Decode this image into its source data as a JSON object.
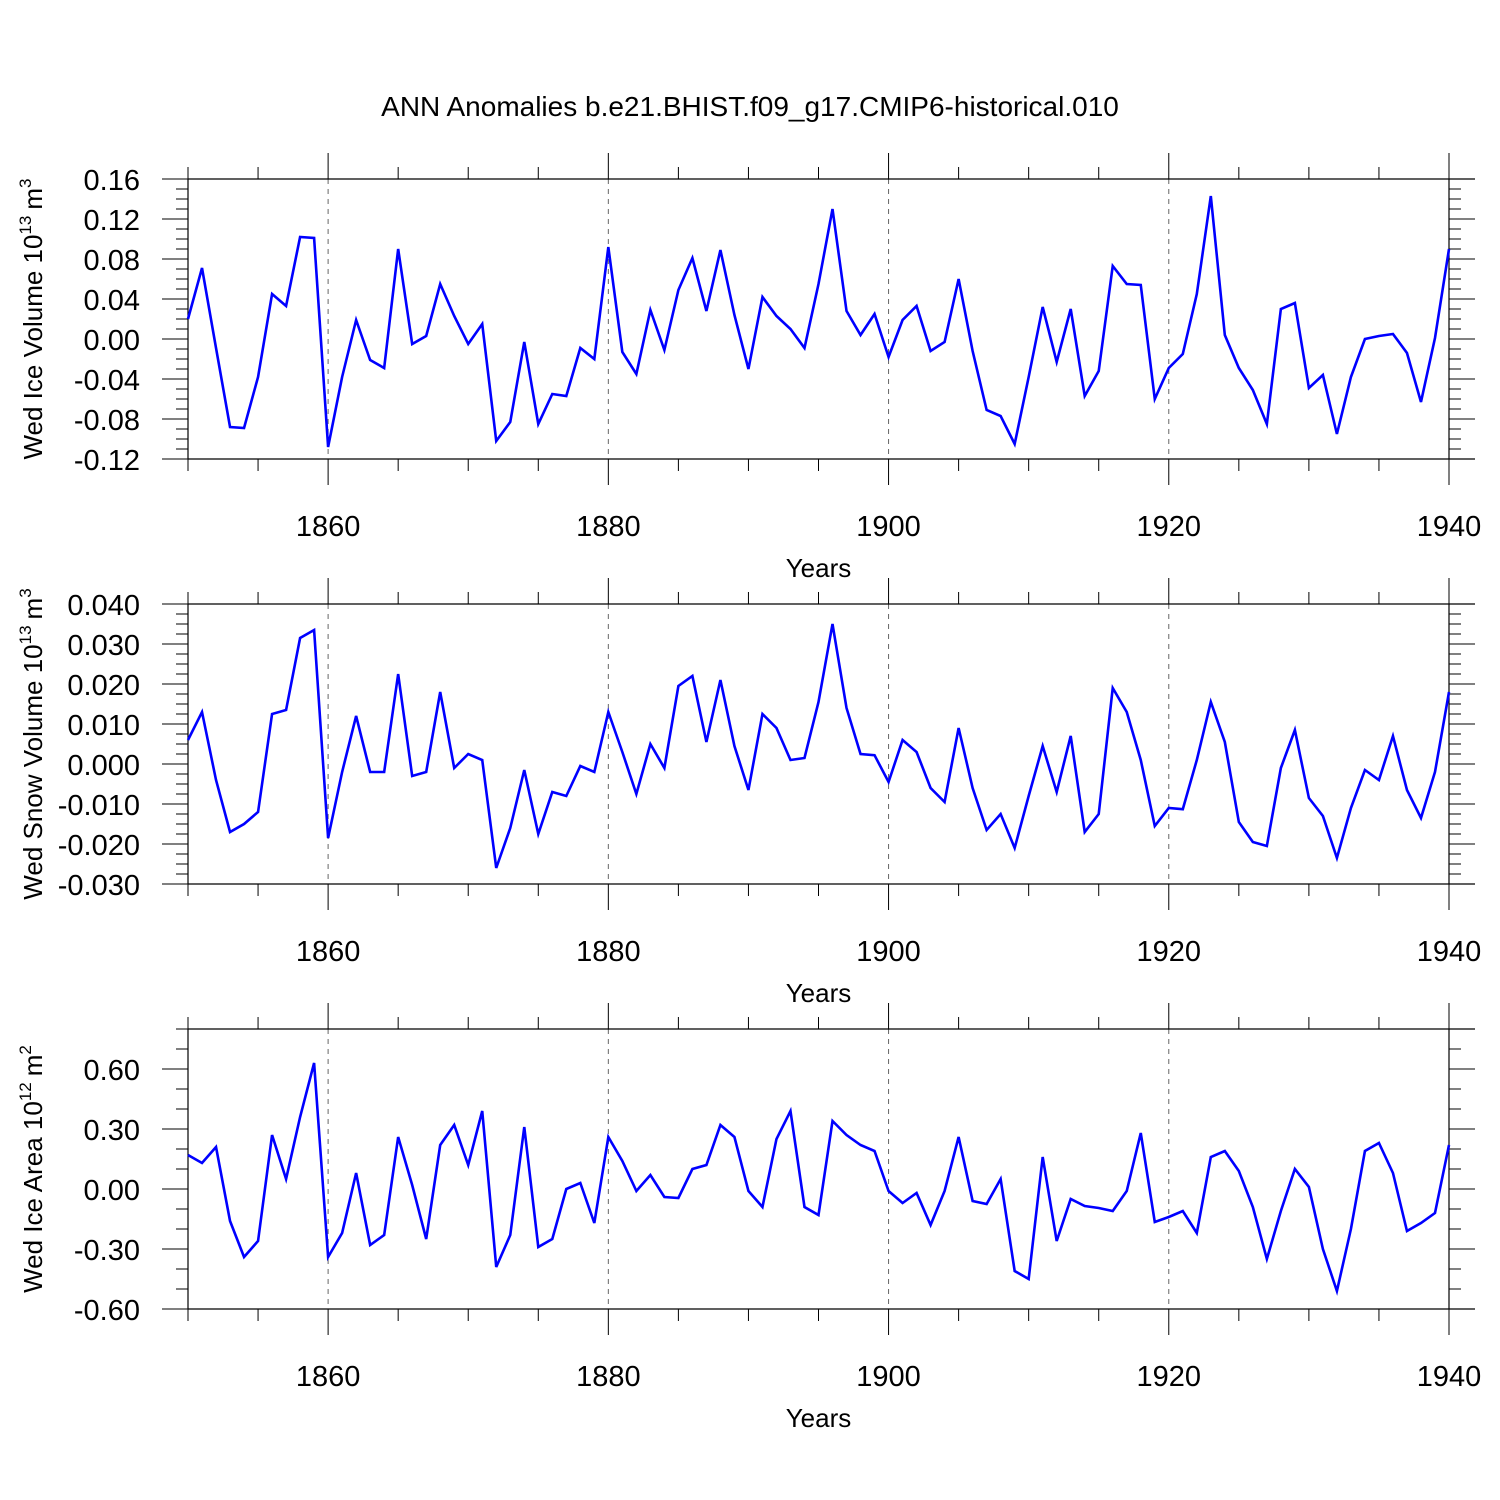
{
  "figure_title": "ANN Anomalies b.e21.BHIST.f09_g17.CMIP6-historical.010",
  "chart_data": [
    {
      "type": "line",
      "title": "ANN Anomalies b.e21.BHIST.f09_g17.CMIP6-historical.010",
      "ylabel_main": "Wed Ice Volume 10",
      "ylabel_exp": "13",
      "ylabel_unit": "m",
      "ylabel_unit_exp": "3",
      "xlabel": "Years",
      "xlim": [
        1850,
        1940
      ],
      "ylim": [
        -0.12,
        0.16
      ],
      "yticks": [
        -0.12,
        -0.08,
        -0.04,
        0.0,
        0.04,
        0.08,
        0.12,
        0.16
      ],
      "ytick_labels": [
        "-0.12",
        "-0.08",
        "-0.04",
        "0.00",
        "0.04",
        "0.08",
        "0.12",
        "0.16"
      ],
      "yminor_step": 0.01,
      "xticks": [
        1860,
        1880,
        1900,
        1920,
        1940
      ],
      "xtick_labels": [
        "1860",
        "1880",
        "1900",
        "1920",
        "1940"
      ],
      "line_color": "#0000ff",
      "series": [
        {
          "name": "Wed Ice Volume",
          "x_start": 1850,
          "values": [
            0.02,
            0.071,
            -0.009,
            -0.088,
            -0.089,
            -0.038,
            0.045,
            0.033,
            0.102,
            0.101,
            -0.108,
            -0.038,
            0.019,
            -0.021,
            -0.029,
            0.09,
            -0.005,
            0.003,
            0.055,
            0.023,
            -0.005,
            0.015,
            -0.102,
            -0.083,
            -0.003,
            -0.085,
            -0.055,
            -0.057,
            -0.009,
            -0.02,
            0.092,
            -0.013,
            -0.035,
            0.029,
            -0.011,
            0.049,
            0.081,
            0.028,
            0.089,
            0.024,
            -0.03,
            0.042,
            0.023,
            0.01,
            -0.009,
            0.055,
            0.13,
            0.028,
            0.004,
            0.025,
            -0.018,
            0.019,
            0.033,
            -0.012,
            -0.003,
            0.06,
            -0.012,
            -0.071,
            -0.077,
            -0.105,
            -0.038,
            0.032,
            -0.023,
            0.03,
            -0.057,
            -0.032,
            0.073,
            0.055,
            0.054,
            -0.06,
            -0.029,
            -0.015,
            0.045,
            0.143,
            0.004,
            -0.029,
            -0.051,
            -0.085,
            0.03,
            0.036,
            -0.049,
            -0.036,
            -0.095,
            -0.038,
            0.0,
            0.003,
            0.005,
            -0.014,
            -0.063,
            0.001,
            0.09
          ]
        }
      ]
    },
    {
      "type": "line",
      "ylabel_main": "Wed Snow Volume 10",
      "ylabel_exp": "13",
      "ylabel_unit": "m",
      "ylabel_unit_exp": "3",
      "xlabel": "Years",
      "xlim": [
        1850,
        1940
      ],
      "ylim": [
        -0.03,
        0.04
      ],
      "yticks": [
        -0.03,
        -0.02,
        -0.01,
        0.0,
        0.01,
        0.02,
        0.03,
        0.04
      ],
      "ytick_labels": [
        "-0.030",
        "-0.020",
        "-0.010",
        "0.000",
        "0.010",
        "0.020",
        "0.030",
        "0.040"
      ],
      "yminor_step": 0.0025,
      "xticks": [
        1860,
        1880,
        1900,
        1920,
        1940
      ],
      "xtick_labels": [
        "1860",
        "1880",
        "1900",
        "1920",
        "1940"
      ],
      "line_color": "#0000ff",
      "series": [
        {
          "name": "Wed Snow Volume",
          "x_start": 1850,
          "values": [
            0.006,
            0.013,
            -0.004,
            -0.017,
            -0.015,
            -0.012,
            0.0125,
            0.0135,
            0.0315,
            0.0335,
            -0.0185,
            -0.002,
            0.012,
            -0.002,
            -0.002,
            0.0225,
            -0.003,
            -0.002,
            0.018,
            -0.001,
            0.0025,
            0.001,
            -0.026,
            -0.016,
            -0.0015,
            -0.0175,
            -0.007,
            -0.008,
            -0.0005,
            -0.002,
            0.013,
            0.003,
            -0.0075,
            0.005,
            -0.001,
            0.0195,
            0.022,
            0.0055,
            0.021,
            0.0045,
            -0.0065,
            0.0125,
            0.009,
            0.001,
            0.0015,
            0.0155,
            0.035,
            0.014,
            0.0025,
            0.0022,
            -0.0045,
            0.006,
            0.003,
            -0.006,
            -0.0095,
            0.009,
            -0.006,
            -0.0165,
            -0.0125,
            -0.021,
            -0.008,
            0.0045,
            -0.007,
            0.007,
            -0.017,
            -0.0125,
            0.019,
            0.013,
            0.001,
            -0.0155,
            -0.011,
            -0.0113,
            0.001,
            0.0155,
            0.0055,
            -0.0145,
            -0.0195,
            -0.0205,
            -0.001,
            0.0085,
            -0.0085,
            -0.013,
            -0.0235,
            -0.011,
            -0.0015,
            -0.004,
            0.007,
            -0.0065,
            -0.0135,
            -0.002,
            0.018
          ]
        }
      ]
    },
    {
      "type": "line",
      "ylabel_main": "Wed Ice Area 10",
      "ylabel_exp": "12",
      "ylabel_unit": "m",
      "ylabel_unit_exp": "2",
      "xlabel": "Years",
      "xlim": [
        1850,
        1940
      ],
      "ylim": [
        -0.6,
        0.8
      ],
      "yticks": [
        -0.6,
        -0.3,
        0.0,
        0.3,
        0.6
      ],
      "ytick_labels": [
        "-0.60",
        "-0.30",
        "0.00",
        "0.30",
        "0.60"
      ],
      "yminor_step": 0.1,
      "xticks": [
        1860,
        1880,
        1900,
        1920,
        1940
      ],
      "xtick_labels": [
        "1860",
        "1880",
        "1900",
        "1920",
        "1940"
      ],
      "line_color": "#0000ff",
      "series": [
        {
          "name": "Wed Ice Area",
          "x_start": 1850,
          "values": [
            0.17,
            0.13,
            0.21,
            -0.16,
            -0.34,
            -0.26,
            0.27,
            0.05,
            0.36,
            0.63,
            -0.34,
            -0.22,
            0.08,
            -0.28,
            -0.23,
            0.26,
            0.02,
            -0.25,
            0.22,
            0.32,
            0.12,
            0.39,
            -0.39,
            -0.23,
            0.31,
            -0.29,
            -0.25,
            0.0,
            0.03,
            -0.17,
            0.26,
            0.14,
            -0.01,
            0.07,
            -0.04,
            -0.045,
            0.1,
            0.12,
            0.32,
            0.26,
            -0.01,
            -0.09,
            0.25,
            0.39,
            -0.09,
            -0.13,
            0.34,
            0.27,
            0.22,
            0.19,
            -0.01,
            -0.07,
            -0.02,
            -0.18,
            -0.01,
            0.26,
            -0.06,
            -0.075,
            0.05,
            -0.41,
            -0.45,
            0.16,
            -0.26,
            -0.05,
            -0.085,
            -0.095,
            -0.11,
            -0.01,
            0.28,
            -0.165,
            -0.14,
            -0.11,
            -0.22,
            0.16,
            0.19,
            0.09,
            -0.09,
            -0.35,
            -0.11,
            0.1,
            0.01,
            -0.3,
            -0.51,
            -0.2,
            0.19,
            0.23,
            0.08,
            -0.21,
            -0.17,
            -0.12,
            0.22
          ]
        }
      ]
    }
  ]
}
